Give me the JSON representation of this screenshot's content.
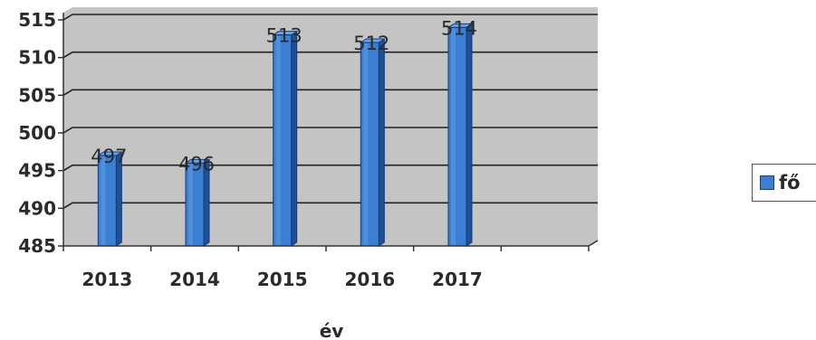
{
  "chart_data": {
    "type": "bar",
    "categories": [
      "2013",
      "2014",
      "2015",
      "2016",
      "2017"
    ],
    "series": [
      {
        "name": "fő",
        "values": [
          497,
          496,
          513,
          512,
          514
        ]
      }
    ],
    "data_labels": [
      "497",
      "496",
      "513",
      "512",
      "514"
    ],
    "xlabel": "év",
    "ylabel": "",
    "ylim": [
      485,
      515
    ],
    "yticks": [
      485,
      490,
      495,
      500,
      505,
      510,
      515
    ],
    "grid": true,
    "legend": "right",
    "colors": {
      "bar": "#3b7fd4",
      "bar_side": "#1f4f96",
      "plot_bg": "#c4c4c4",
      "grid": "#202020"
    }
  }
}
